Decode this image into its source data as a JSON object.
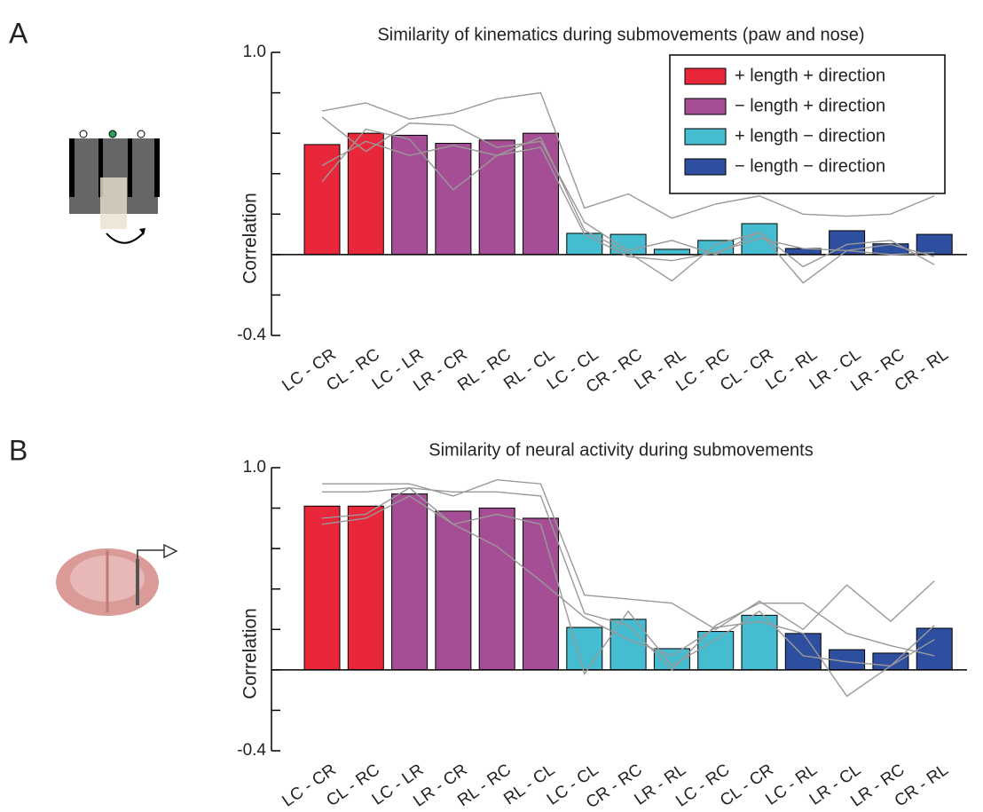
{
  "chart_data": [
    {
      "type": "bar",
      "panel_label": "A",
      "title": "Similarity of kinematics during submovements (paw and nose)",
      "y_label": "Correlation",
      "categories": [
        "LC - CR",
        "CL - RC",
        "LC - LR",
        "LR - CR",
        "RL - RC",
        "RL - CL",
        "LC - CL",
        "CR - RC",
        "LR - RL",
        "LC - RC",
        "CL - CR",
        "LC - RL",
        "LR - CL",
        "LR - RC",
        "CR - RL"
      ],
      "values": [
        0.544,
        0.6,
        0.59,
        0.55,
        0.566,
        0.6,
        0.105,
        0.1,
        0.026,
        0.07,
        0.153,
        0.03,
        0.118,
        0.053,
        0.1
      ],
      "bar_colors": [
        "#e8283a",
        "#e8283a",
        "#a54e95",
        "#a54e95",
        "#a54e95",
        "#a54e95",
        "#45bcd0",
        "#45bcd0",
        "#45bcd0",
        "#45bcd0",
        "#45bcd0",
        "#2e4fa0",
        "#2e4fa0",
        "#2e4fa0",
        "#2e4fa0"
      ],
      "individual_lines": [
        [
          0.71,
          0.75,
          0.67,
          0.7,
          0.77,
          0.8,
          0.23,
          0.3,
          0.18,
          0.25,
          0.29,
          0.2,
          0.19,
          0.2,
          0.29
        ],
        [
          0.68,
          0.51,
          0.65,
          0.64,
          0.53,
          0.56,
          0.16,
          0.02,
          0.07,
          0,
          0.11,
          -0.06,
          0.05,
          0.07,
          -0.05
        ],
        [
          0.44,
          0.56,
          0.49,
          0.54,
          0.49,
          0.58,
          0.12,
          0.01,
          -0.13,
          0.05,
          0.11,
          -0.14,
          0.02,
          0,
          0.01
        ],
        [
          0.36,
          0.62,
          0.57,
          0.32,
          0.49,
          0.53,
          0.1,
          -0.01,
          -0.03,
          0.01,
          0.08,
          0.03,
          0.02,
          0.05,
          -0.01
        ]
      ],
      "line_color": "#999999",
      "legend": [
        {
          "name": "+ length + direction",
          "color": "#e8283a"
        },
        {
          "name": "− length + direction",
          "color": "#a54e95"
        },
        {
          "name": "+ length − direction",
          "color": "#45bcd0"
        },
        {
          "name": "− length − direction",
          "color": "#2e4fa0"
        }
      ],
      "legend_position": "upper right",
      "ylim": [
        -0.4,
        1.0
      ],
      "yticks": [
        -0.4,
        {
          "value": 1.0,
          "label": "1.0"
        }
      ],
      "minor_yticks": [
        -0.2,
        0,
        0.2,
        0.4,
        0.6,
        0.8
      ]
    },
    {
      "type": "bar",
      "panel_label": "B",
      "title": "Similarity of neural activity during submovements",
      "y_label": "Correlation",
      "categories": [
        "LC - CR",
        "CL - RC",
        "LC - LR",
        "LR - CR",
        "RL - RC",
        "RL - CL",
        "LC - CL",
        "CR - RC",
        "LR - RL",
        "LC - RC",
        "CL - CR",
        "LC - RL",
        "LR - CL",
        "LR - RC",
        "CR - RL"
      ],
      "values": [
        0.81,
        0.81,
        0.87,
        0.785,
        0.8,
        0.75,
        0.21,
        0.25,
        0.105,
        0.19,
        0.27,
        0.18,
        0.1,
        0.083,
        0.206
      ],
      "bar_colors": [
        "#e8283a",
        "#e8283a",
        "#a54e95",
        "#a54e95",
        "#a54e95",
        "#a54e95",
        "#45bcd0",
        "#45bcd0",
        "#45bcd0",
        "#45bcd0",
        "#45bcd0",
        "#2e4fa0",
        "#2e4fa0",
        "#2e4fa0",
        "#2e4fa0"
      ],
      "individual_lines": [
        [
          0.92,
          0.92,
          0.92,
          0.86,
          0.94,
          0.92,
          0.37,
          0.35,
          0.33,
          0.2,
          0.34,
          0.2,
          0.42,
          0.24,
          0.44
        ],
        [
          0.88,
          0.88,
          0.9,
          0.88,
          0.88,
          0.86,
          0.28,
          0.22,
          0,
          0.22,
          0.33,
          0.33,
          0.18,
          0.12,
          0.07
        ],
        [
          0.75,
          0.77,
          0.9,
          0.72,
          0.61,
          0.44,
          0.26,
          0.15,
          0.07,
          0.21,
          0.24,
          0.18,
          -0.13,
          0.02,
          0.22
        ],
        [
          0.72,
          0.75,
          0.86,
          0.72,
          0.77,
          0.72,
          -0.02,
          0.29,
          0.02,
          0.15,
          0.29,
          0.07,
          0.04,
          0.02,
          0.15
        ]
      ],
      "line_color": "#999999",
      "ylim": [
        -0.4,
        1.0
      ],
      "yticks": [
        -0.4,
        {
          "value": 1.0,
          "label": "1.0"
        }
      ],
      "minor_yticks": [
        -0.2,
        0,
        0.2,
        0.4,
        0.6,
        0.8
      ]
    }
  ]
}
